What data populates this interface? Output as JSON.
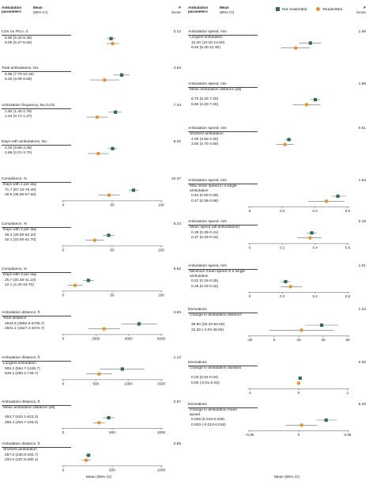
{
  "header": {
    "param": "Ambulation parameters",
    "param_line1": "Ambulation",
    "param_line2": "parameters",
    "mean": "Mean",
    "ci": "(95% CI)",
    "f1": "F",
    "f2": "Score"
  },
  "legend": [
    {
      "name": "Not readmitted",
      "color": "#2e6b5a",
      "shape": "square"
    },
    {
      "name": "Readmitted",
      "color": "#e8912d",
      "shape": "circle"
    }
  ],
  "x_axis_title": "Mean (95% CI)",
  "chart_data": [
    {
      "type": "scatter",
      "title": "LOS on PCU, d",
      "subtitle": "",
      "f": "0.12",
      "axis": [],
      "xlim": [
        0,
        12
      ],
      "series": [
        {
          "name": "Not readmitted",
          "mean": 5.86,
          "lo": 5.34,
          "hi": 6.38,
          "label": "5.86 (5.34-6.38)"
        },
        {
          "name": "Readmitted",
          "mean": 6.05,
          "lo": 5.27,
          "hi": 6.83,
          "label": "6.05 (5.27-6.83)"
        }
      ]
    },
    {
      "type": "scatter",
      "title": "Total ambulations, No.",
      "subtitle": "",
      "f": "3.84",
      "axis": [],
      "xlim": [
        0,
        15
      ],
      "series": [
        {
          "name": "Not readmitted",
          "mean": 8.95,
          "lo": 7.7,
          "hi": 10.19,
          "label": "8.95 (7.70-10.19)"
        },
        {
          "name": "Readmitted",
          "mean": 6.33,
          "lo": 4.09,
          "hi": 8.58,
          "label": "6.33 (4.09-8.58)"
        }
      ]
    },
    {
      "type": "scatter",
      "title": "Ambulation frequency, No./LOS",
      "subtitle": "",
      "f": "7.34",
      "axis": [],
      "xlim": [
        0,
        3
      ],
      "series": [
        {
          "name": "Not readmitted",
          "mean": 1.6,
          "lo": 1.4,
          "hi": 1.79,
          "label": "1.60 (1.40-1.79)"
        },
        {
          "name": "Readmitted",
          "mean": 1.04,
          "lo": 0.71,
          "hi": 1.37,
          "label": "1.04 (0.71-1.37)"
        }
      ]
    },
    {
      "type": "scatter",
      "title": "Days with ambulations, No.",
      "subtitle": "",
      "f": "8.02",
      "axis": [],
      "xlim": [
        0,
        8
      ],
      "series": [
        {
          "name": "Not readmitted",
          "mean": 4.03,
          "lo": 3.66,
          "hi": 4.39,
          "label": "4.03 (3.66-4.39)"
        },
        {
          "name": "Readmitted",
          "mean": 2.86,
          "lo": 2.01,
          "hi": 3.7,
          "label": "2.86 (2.01-3.70)"
        }
      ]
    },
    {
      "type": "scatter",
      "title": "Compliance, %",
      "subtitle": "Days with 1 per day",
      "f": "22.37",
      "xlim": [
        0,
        100
      ],
      "axis": [
        {
          "v": 0,
          "t": "0"
        },
        {
          "v": 50,
          "t": "50"
        },
        {
          "v": 100,
          "t": "100"
        }
      ],
      "series": [
        {
          "name": "Not readmitted",
          "mean": 71.7,
          "lo": 67.1,
          "hi": 76.4,
          "label": "71.7 (67.10-76.40)"
        },
        {
          "name": "Readmitted",
          "mean": 46.8,
          "lo": 35.9,
          "hi": 57.6,
          "label": "46.8 (35.90-57.60)"
        }
      ]
    },
    {
      "type": "scatter",
      "title": "Compliance, %",
      "subtitle": "Days with 2 per day",
      "f": "5.34",
      "xlim": [
        0,
        100
      ],
      "axis": [
        {
          "v": 0,
          "t": "0"
        },
        {
          "v": 50,
          "t": "50"
        },
        {
          "v": 100,
          "t": "100"
        }
      ],
      "series": [
        {
          "name": "Not readmitted",
          "mean": 46.4,
          "lo": 40.5,
          "hi": 52.2,
          "label": "46.4 (40.50-52.20)"
        },
        {
          "name": "Readmitted",
          "mean": 32.1,
          "lo": 22.6,
          "hi": 41.7,
          "label": "32.1 (22.60-41.70)"
        }
      ]
    },
    {
      "type": "scatter",
      "title": "Compliance, %",
      "subtitle": "Days with 3 per day",
      "f": "5.92",
      "xlim": [
        0,
        100
      ],
      "axis": [
        {
          "v": 0,
          "t": "0"
        },
        {
          "v": 50,
          "t": "50"
        },
        {
          "v": 100,
          "t": "100"
        }
      ],
      "series": [
        {
          "name": "Not readmitted",
          "mean": 25.7,
          "lo": 20.3,
          "hi": 31.1,
          "label": "25.7 (20.30-31.10)"
        },
        {
          "name": "Readmitted",
          "mean": 12.1,
          "lo": 4.4,
          "hi": 19.7,
          "label": "12.1 (4.40-19.70)"
        }
      ]
    },
    {
      "type": "scatter",
      "title": "Ambulation distance, ft",
      "subtitle": "Total distance",
      "f": "3.83",
      "xlim": [
        0,
        6000
      ],
      "axis": [
        {
          "v": 0,
          "t": "0"
        },
        {
          "v": 2000,
          "t": "2000"
        },
        {
          "v": 4000,
          "t": "4000"
        },
        {
          "v": 6000,
          "t": "6000"
        }
      ],
      "series": [
        {
          "name": "Not readmitted",
          "mean": 4643.6,
          "lo": 3550.5,
          "hi": 5736.7,
          "label": "4643.6 (3550.5-5736.7)"
        },
        {
          "name": "Readmitted",
          "mean": 2501.1,
          "lo": 1527.4,
          "hi": 3474.7,
          "label": "2501.1 (1527.4-3474.7)"
        }
      ]
    },
    {
      "type": "scatter",
      "title": "Ambulation distance, ft",
      "subtitle": "Longest ambulation",
      "f": "1.12",
      "xlim": [
        0,
        1500
      ],
      "axis": [
        {
          "v": 0,
          "t": "0"
        },
        {
          "v": 500,
          "t": "500"
        },
        {
          "v": 1000,
          "t": "1000"
        },
        {
          "v": 1500,
          "t": "1500"
        }
      ],
      "series": [
        {
          "name": "Not readmitted",
          "mean": 905.2,
          "lo": 564.7,
          "hi": 1245.7,
          "label": "905.2 (564.7-1245.7)"
        },
        {
          "name": "Readmitted",
          "mean": 549.4,
          "lo": 350.2,
          "hi": 748.7,
          "label": "549.4 (350.2-748.7)"
        }
      ]
    },
    {
      "type": "scatter",
      "title": "Ambulation distance, ft",
      "subtitle": "Mean ambulation distance (all)",
      "f": "2.67",
      "xlim": [
        0,
        1000
      ],
      "axis": [
        {
          "v": 0,
          "t": "0"
        },
        {
          "v": 500,
          "t": "500"
        },
        {
          "v": 1000,
          "t": "1000"
        }
      ],
      "series": [
        {
          "name": "Not readmitted",
          "mean": 463.7,
          "lo": 404.1,
          "hi": 523.3,
          "label": "463.7 (404.1-523.3)"
        },
        {
          "name": "Readmitted",
          "mean": 365.4,
          "lo": 304.7,
          "hi": 426.2,
          "label": "365.4 (304.7-426.2)"
        }
      ]
    },
    {
      "type": "scatter",
      "title": "Ambulation distance, ft",
      "subtitle": "Shortest ambulation",
      "f": "0.69",
      "xlim": [
        0,
        1000
      ],
      "axis": [
        {
          "v": 0,
          "t": "0"
        },
        {
          "v": 500,
          "t": "500"
        },
        {
          "v": 1000,
          "t": "1000"
        }
      ],
      "series": [
        {
          "name": "Not readmitted",
          "mean": 257.8,
          "lo": 230.9,
          "hi": 284.7,
          "label": "257.8 (230.9-284.7)"
        },
        {
          "name": "Readmitted",
          "mean": 234.0,
          "lo": 187.8,
          "hi": 280.1,
          "label": "234.0 (187.8-280.1)"
        }
      ]
    },
    {
      "type": "scatter",
      "title": "Ambulation speed, min",
      "subtitle": "Longest ambulation",
      "f": "1.68",
      "axis": [],
      "xlim": [
        0,
        20
      ],
      "series": [
        {
          "name": "Not readmitted",
          "mean": 12.4,
          "lo": 10.1,
          "hi": 14.6,
          "label": "12.40 (10.10-14.60)"
        },
        {
          "name": "Readmitted",
          "mean": 9.4,
          "lo": 6.4,
          "hi": 12.3,
          "label": "9.40 (6.40-12.30)"
        }
      ]
    },
    {
      "type": "scatter",
      "title": "Ambulation speed, min",
      "subtitle": "Mean ambulation distance (all)",
      "f": "1.99",
      "axis": [],
      "xlim": [
        0,
        10
      ],
      "series": [
        {
          "name": "Not readmitted",
          "mean": 6.7,
          "lo": 6.2,
          "hi": 7.2,
          "label": "6.70 (6.20-7.20)"
        },
        {
          "name": "Readmitted",
          "mean": 5.8,
          "lo": 4.4,
          "hi": 7.2,
          "label": "5.80 (4.40-7.20)"
        }
      ]
    },
    {
      "type": "scatter",
      "title": "Ambulation speed, min",
      "subtitle": "Shortest ambulation",
      "f": "0.61",
      "axis": [],
      "xlim": [
        0,
        10
      ],
      "series": [
        {
          "name": "Not readmitted",
          "mean": 4.0,
          "lo": 3.6,
          "hi": 4.3,
          "label": "4.00 (3.60-4.30)"
        },
        {
          "name": "Readmitted",
          "mean": 3.6,
          "lo": 2.7,
          "hi": 4.5,
          "label": "3.60 (2.70-4.50)"
        }
      ]
    },
    {
      "type": "scatter",
      "title": "Ambulation speed, m/s",
      "subtitle": "Max mean speed in a single ambulation",
      "f": "1.84",
      "xlim": [
        0,
        0.6
      ],
      "axis": [
        {
          "v": 0,
          "t": "0"
        },
        {
          "v": 0.2,
          "t": "0.2"
        },
        {
          "v": 0.4,
          "t": "0.4"
        },
        {
          "v": 0.6,
          "t": "0.6"
        }
      ],
      "series": [
        {
          "name": "Not readmitted",
          "mean": 0.54,
          "lo": 0.5,
          "hi": 0.59,
          "label": "0.54 (0.50-0.59)"
        },
        {
          "name": "Readmitted",
          "mean": 0.47,
          "lo": 0.36,
          "hi": 0.58,
          "label": "0.47 (0.36-0.58)"
        }
      ]
    },
    {
      "type": "scatter",
      "title": "Ambulation speed, m/s",
      "subtitle": "Mean speed (all ambulations)",
      "f": "0.18",
      "xlim": [
        0,
        0.6
      ],
      "axis": [
        {
          "v": 0,
          "t": "0"
        },
        {
          "v": 0.2,
          "t": "0.2"
        },
        {
          "v": 0.4,
          "t": "0.4"
        },
        {
          "v": 0.6,
          "t": "0.6"
        }
      ],
      "series": [
        {
          "name": "Not readmitted",
          "mean": 0.38,
          "lo": 0.35,
          "hi": 0.41,
          "label": "0.38 (0.35-0.41)"
        },
        {
          "name": "Readmitted",
          "mean": 0.37,
          "lo": 0.29,
          "hi": 0.44,
          "label": "0.37 (0.29-0.44)"
        }
      ]
    },
    {
      "type": "scatter",
      "title": "Ambulation speed, m/s",
      "subtitle": "Minimum mean speed in a single ambulation",
      "f": "1.01",
      "xlim": [
        0,
        0.6
      ],
      "axis": [
        {
          "v": 0,
          "t": "0"
        },
        {
          "v": 0.2,
          "t": "0.2"
        },
        {
          "v": 0.4,
          "t": "0.4"
        },
        {
          "v": 0.6,
          "t": "0.6"
        }
      ],
      "series": [
        {
          "name": "Not readmitted",
          "mean": 0.22,
          "lo": 0.19,
          "hi": 0.25,
          "label": "0.22 (0.19-0.25)"
        },
        {
          "name": "Readmitted",
          "mean": 0.25,
          "lo": 0.19,
          "hi": 0.32,
          "label": "0.25 (0.19-0.32)"
        }
      ]
    },
    {
      "type": "scatter",
      "title": "Derivatives",
      "subtitle": "Change in ambulation distance",
      "f": "1.23",
      "xlim": [
        -20,
        60
      ],
      "axis": [
        {
          "v": -20,
          "t": "-20"
        },
        {
          "v": 0,
          "t": "0"
        },
        {
          "v": 20,
          "t": "20"
        },
        {
          "v": 40,
          "t": "40"
        },
        {
          "v": 60,
          "t": "60"
        }
      ],
      "series": [
        {
          "name": "Not readmitted",
          "mean": 38.8,
          "lo": 25.1,
          "hi": 52.5,
          "label": "38.80 (25.10-52.50)"
        },
        {
          "name": "Readmitted",
          "mean": 22.3,
          "lo": -4.0,
          "hi": 48.6,
          "label": "22.30 (-4.00-48.60)"
        }
      ]
    },
    {
      "type": "scatter",
      "title": "Derivatives",
      "subtitle": "Change in ambulation duration",
      "f": "0.30",
      "xlim": [
        -1,
        1
      ],
      "axis": [
        {
          "v": -1,
          "t": "-1"
        },
        {
          "v": 0,
          "t": "0"
        },
        {
          "v": 1,
          "t": "1"
        }
      ],
      "series": [
        {
          "name": "Not readmitted",
          "mean": 0.03,
          "lo": 0.02,
          "hi": 0.04,
          "label": "0.03 (0.02-0.04)"
        },
        {
          "name": "Readmitted",
          "mean": 0.0,
          "lo": -0.01,
          "hi": 0.02,
          "label": "0.00 (-0.01-0.02)"
        }
      ]
    },
    {
      "type": "scatter",
      "title": "Derivatives",
      "subtitle": "Change in ambulation mean speed",
      "f": "5.33",
      "xlim": [
        -0.05,
        0.05
      ],
      "axis": [
        {
          "v": -0.05,
          "t": "-0.05"
        },
        {
          "v": 0,
          "t": "0"
        },
        {
          "v": 0.05,
          "t": "0.05"
        }
      ],
      "series": [
        {
          "name": "Not readmitted",
          "mean": 0.028,
          "lo": 0.018,
          "hi": 0.039,
          "label": "0.028 (0.018-0.039)"
        },
        {
          "name": "Readmitted",
          "mean": 0.003,
          "lo": -0.013,
          "hi": 0.019,
          "label": "0.003 (-0.013-0.019)"
        }
      ]
    }
  ]
}
